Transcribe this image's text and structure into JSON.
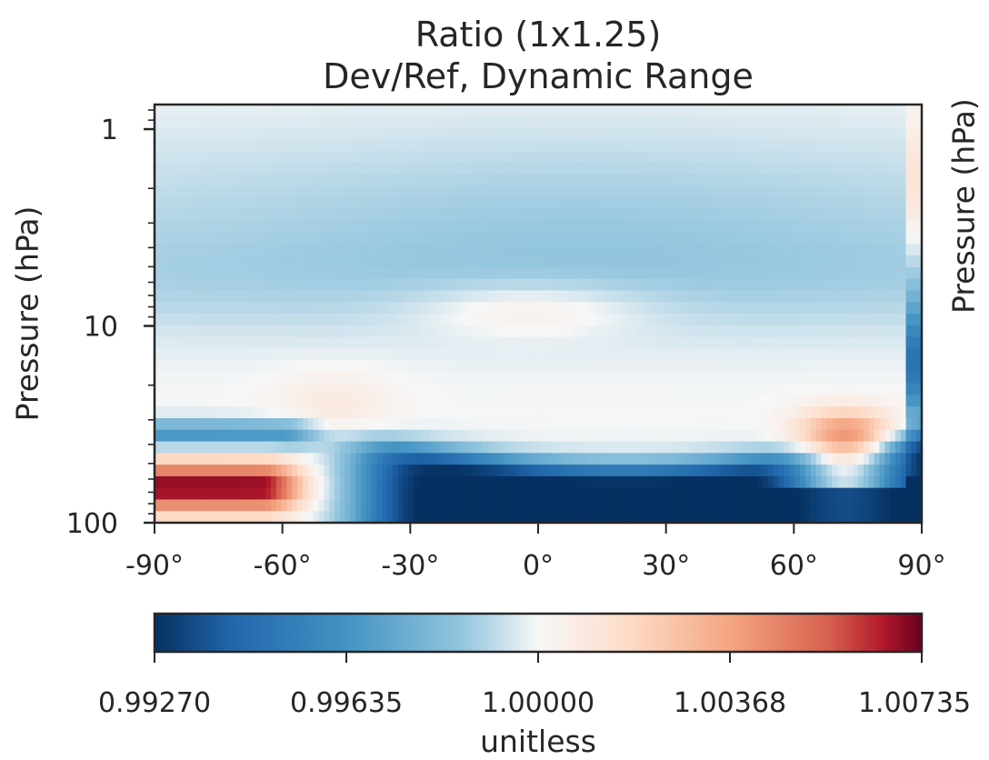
{
  "chart_data": {
    "type": "heatmap",
    "title": "Ratio (1x1.25)",
    "subtitle": "Dev/Ref, Dynamic Range",
    "xlabel": "",
    "ylabel": "Pressure (hPa)",
    "xlim": [
      -90,
      90
    ],
    "ylim": [
      100,
      0.75
    ],
    "y_scale": "log",
    "x_ticks": [
      "-90°",
      "-60°",
      "-30°",
      "0°",
      "30°",
      "60°",
      "90°"
    ],
    "y_ticks": [
      "1",
      "10",
      "100"
    ],
    "colormap": "RdBu_r",
    "colorbar": {
      "label": "unitless",
      "min": 0.9927,
      "max": 1.00735,
      "ticks": [
        "0.99270",
        "0.99635",
        "1.00000",
        "1.00368",
        "1.00735"
      ]
    },
    "features": [
      {
        "region": "lat -90 to -60, ~50-90 hPa",
        "value": 1.0068
      },
      {
        "region": "lat -60 to -35, ~20-35 hPa",
        "value": 1.001
      },
      {
        "region": "lat -25 to 20, ~6-12 hPa",
        "value": 1.0012
      },
      {
        "region": "lat 50 to 85, ~25-60 hPa",
        "value": 1.004
      },
      {
        "region": "lat -45 to 70, ~50-100 hPa",
        "value": 0.9927
      },
      {
        "region": "lat 85 to 90, ~1-4 hPa",
        "value": 1.002
      },
      {
        "region": "lat 85 to 90, ~8-30 hPa",
        "value": 0.994
      },
      {
        "region": "background 1-10 hPa",
        "value": 0.998
      }
    ]
  },
  "cut_off_right_label": "Pressure (hPa)"
}
